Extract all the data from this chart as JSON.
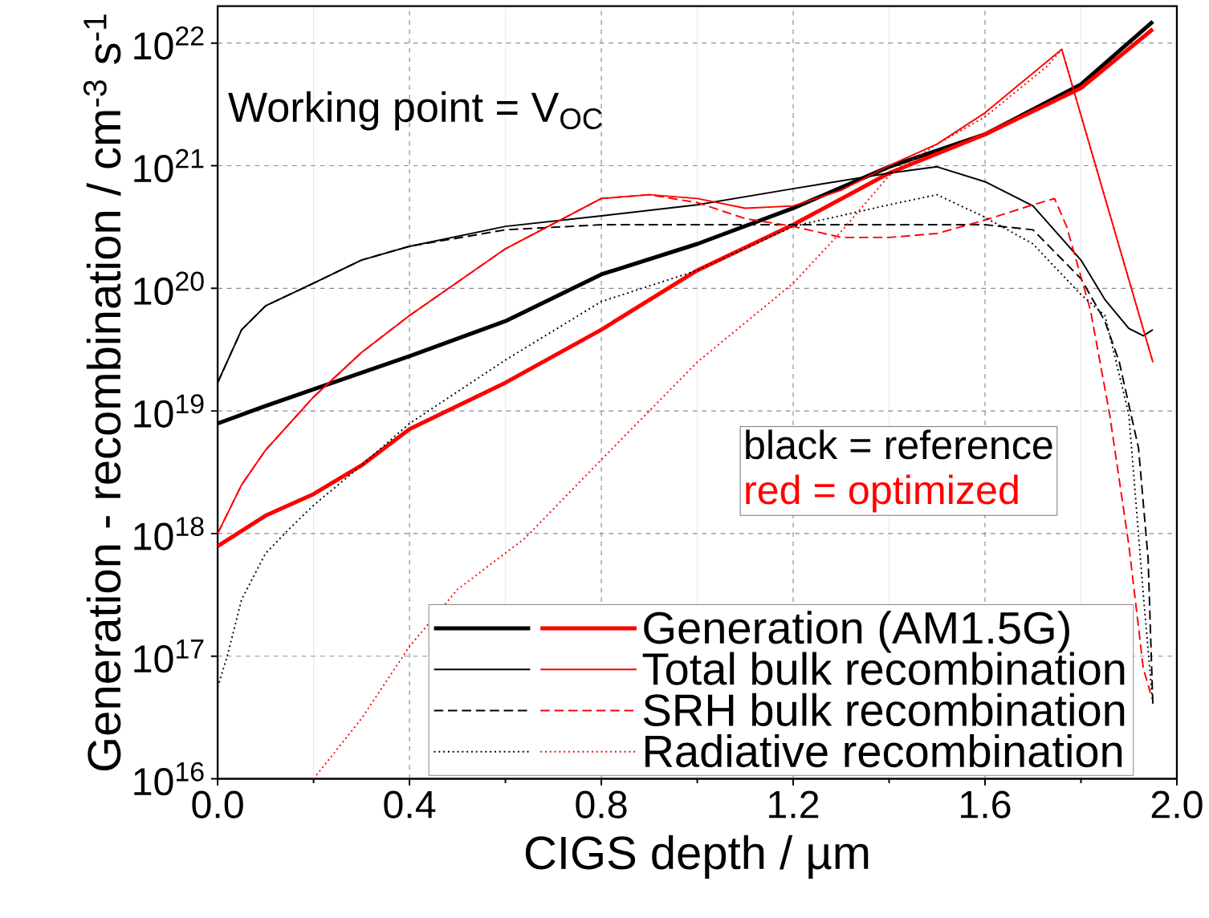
{
  "chart_data": {
    "type": "line",
    "xlabel": "CIGS depth / µm",
    "ylabel": "Generation - recombination / cm$^{-3}$ s$^{-1}$",
    "annotations": [
      "Working point = V$_{OC}$",
      "black = reference",
      "red = optimized"
    ],
    "xlim": [
      0,
      2
    ],
    "ylim": [
      1e+16,
      2e+22
    ],
    "log": "y",
    "grid": true,
    "legend": "bottom right",
    "xticks": [
      {
        "value": 0,
        "label": "0.0"
      },
      0.4,
      0.8,
      1.2,
      1.6,
      {
        "value": 2,
        "label": "2.0"
      }
    ],
    "yticks": [
      {
        "value": 1e+16,
        "label": "10$^{16}$"
      },
      {
        "value": 1e+17,
        "label": "10$^{17}$"
      },
      {
        "value": 1e+18,
        "label": "10$^{18}$"
      },
      {
        "value": 1e+19,
        "label": "10$^{19}$"
      },
      {
        "value": 1e+20,
        "label": "10$^{20}$"
      },
      {
        "value": 1e+21,
        "label": "10$^{21}$"
      },
      {
        "value": 1e+22,
        "label": "10$^{22}$"
      }
    ],
    "series": [
      {
        "color": "#000000",
        "line_style": "solid",
        "x": [
          0,
          0.1,
          0.2,
          0.4,
          0.6,
          0.8,
          1.0,
          1.2,
          1.4,
          1.6,
          1.8,
          1.95
        ],
        "values": [
          7.9e+18,
          1.1e+19,
          1.5e+19,
          2.8e+19,
          5.4e+19,
          1.3e+20,
          2.3e+20,
          4.5e+20,
          9.8e+20,
          1.8e+21,
          4.6e+21,
          1.5e+22
        ]
      },
      {
        "name": "Generation (AM1.5G)",
        "color": "#ff0000",
        "line_style": "solid",
        "x": [
          0,
          0.1,
          0.2,
          0.3,
          0.4,
          0.6,
          0.8,
          1.0,
          1.2,
          1.4,
          1.6,
          1.8,
          1.95
        ],
        "values": [
          7.9e+17,
          1.4e+18,
          2.1e+18,
          3.6e+18,
          7.1e+18,
          1.7e+19,
          4.6e+19,
          1.4e+20,
          3.3e+20,
          8.7e+20,
          1.8e+21,
          4.3e+21,
          1.3e+22
        ]
      },
      {
        "color": "#000000",
        "line_style": "solid",
        "x": [
          0,
          0.05,
          0.1,
          0.2,
          0.3,
          0.4,
          0.6,
          0.8,
          1.0,
          1.2,
          1.4,
          1.5,
          1.6,
          1.7,
          1.8,
          1.85,
          1.9,
          1.93,
          1.95
        ],
        "values": [
          1.7e+19,
          4.6e+19,
          7.2e+19,
          1.1e+20,
          1.7e+20,
          2.2e+20,
          3.2e+20,
          3.9e+20,
          4.8e+20,
          6.5e+20,
          8.7e+20,
          9.8e+20,
          7.4e+20,
          4.7e+20,
          1.7e+20,
          8.1e+19,
          4.7e+19,
          4.1e+19,
          4.6e+19
        ]
      },
      {
        "name": "Total bulk recombination",
        "color": "#ff0000",
        "line_style": "solid",
        "x": [
          0,
          0.05,
          0.1,
          0.2,
          0.3,
          0.4,
          0.6,
          0.8,
          0.9,
          1.0,
          1.1,
          1.2,
          1.3,
          1.4,
          1.5,
          1.6,
          1.76,
          1.95
        ],
        "values": [
          1e+18,
          2.5e+18,
          4.8e+18,
          1.3e+19,
          3e+19,
          6e+19,
          2.1e+20,
          5.4e+20,
          5.8e+20,
          5.4e+20,
          4.5e+20,
          4.7e+20,
          6.3e+20,
          1e+21,
          1.5e+21,
          2.7e+21,
          8.9e+21,
          2.5e+19
        ]
      },
      {
        "color": "#000000",
        "line_style": "dashed",
        "x": [
          0,
          0.05,
          0.1,
          0.2,
          0.3,
          0.4,
          0.6,
          0.8,
          1.0,
          1.2,
          1.4,
          1.6,
          1.7,
          1.8,
          1.85,
          1.88,
          1.92,
          1.94,
          1.95
        ],
        "values": [
          1.7e+19,
          4.6e+19,
          7.2e+19,
          1.1e+20,
          1.7e+20,
          2.2e+20,
          3e+20,
          3.3e+20,
          3.3e+20,
          3.3e+20,
          3.3e+20,
          3.3e+20,
          3e+20,
          1.2e+20,
          5.4e+19,
          2.5e+19,
          5e+18,
          6.3e+17,
          4e+16
        ]
      },
      {
        "name": "SRH bulk recombination",
        "color": "#ff0000",
        "line_style": "dashed",
        "x": [
          0,
          0.05,
          0.1,
          0.2,
          0.3,
          0.4,
          0.6,
          0.8,
          0.9,
          1.0,
          1.1,
          1.2,
          1.3,
          1.4,
          1.5,
          1.6,
          1.7,
          1.745,
          1.77,
          1.82,
          1.86,
          1.9,
          1.93,
          1.945
        ],
        "values": [
          1e+18,
          2.5e+18,
          4.8e+18,
          1.3e+19,
          3e+19,
          6e+19,
          2.1e+20,
          5.4e+20,
          5.8e+20,
          5e+20,
          3.7e+20,
          3.2e+20,
          2.6e+20,
          2.6e+20,
          2.8e+20,
          3.6e+20,
          4.8e+20,
          5.4e+20,
          3.2e+20,
          6.6e+19,
          9.3e+18,
          8e+17,
          8e+16,
          5e+16
        ]
      },
      {
        "color": "#000000",
        "line_style": "dotted",
        "x": [
          0,
          0.02,
          0.05,
          0.1,
          0.15,
          0.2,
          0.3,
          0.4,
          0.6,
          0.8,
          1.0,
          1.2,
          1.4,
          1.5,
          1.6,
          1.7,
          1.8,
          1.85,
          1.9,
          1.93,
          1.95
        ],
        "values": [
          5.6e+16,
          1e+17,
          2.9e+17,
          6.9e+17,
          1.1e+18,
          1.7e+18,
          3.6e+18,
          7.9e+18,
          2.6e+19,
          7.8e+19,
          1.4e+20,
          3.2e+20,
          4.8e+20,
          5.8e+20,
          3.8e+20,
          2.3e+20,
          8.9e+19,
          6e+19,
          9.3e+18,
          3.2e+17,
          4e+16
        ]
      },
      {
        "name": "Radiative recombination",
        "color": "#ff0000",
        "line_style": "dotted",
        "x": [
          0.2,
          0.3,
          0.4,
          0.5,
          0.64,
          0.8,
          1.0,
          1.2,
          1.3,
          1.4,
          1.5,
          1.6,
          1.73,
          1.76,
          1.95
        ],
        "values": [
          1e+16,
          3.1e+16,
          1.2e+17,
          3.5e+17,
          9.1e+17,
          4e+18,
          2.5e+19,
          1.1e+20,
          2.9e+20,
          8.3e+20,
          1.5e+21,
          2.5e+21,
          6.5e+21,
          8.9e+21,
          2.5e+19
        ]
      }
    ]
  }
}
